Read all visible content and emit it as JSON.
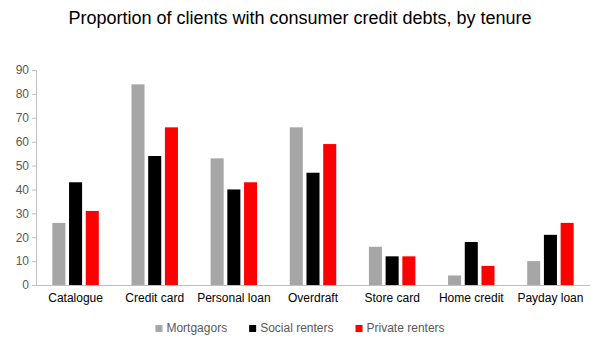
{
  "chart_data": {
    "type": "bar",
    "title": "Proportion of clients with consumer credit debts, by tenure",
    "categories": [
      "Catalogue",
      "Credit card",
      "Personal loan",
      "Overdraft",
      "Store card",
      "Home credit",
      "Payday loan"
    ],
    "series": [
      {
        "name": "Mortgagors",
        "color": "#a6a6a6",
        "values": [
          26,
          84,
          53,
          66,
          16,
          4,
          10
        ]
      },
      {
        "name": "Social renters",
        "color": "#000000",
        "values": [
          43,
          54,
          40,
          47,
          12,
          18,
          21
        ]
      },
      {
        "name": "Private renters",
        "color": "#ff0000",
        "values": [
          31,
          66,
          43,
          59,
          12,
          8,
          26
        ]
      }
    ],
    "ylim": [
      0,
      90
    ],
    "yticks": [
      0,
      10,
      20,
      30,
      40,
      50,
      60,
      70,
      80,
      90
    ],
    "grid": false,
    "legend": "bottom"
  }
}
